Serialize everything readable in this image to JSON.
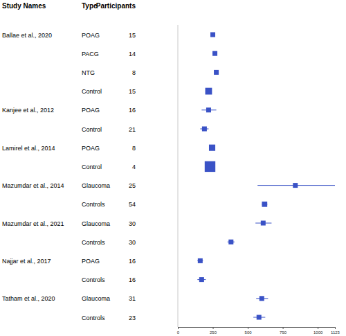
{
  "chart_data": {
    "type": "forest",
    "columns": [
      "Study Names",
      "Type",
      "Participants"
    ],
    "studies": [
      "Ballae et al., 2020",
      null,
      null,
      null,
      "Kanjee et al., 2012",
      null,
      "Lamirel et al., 2014",
      null,
      "Mazumdar et al., 2014",
      null,
      "Mazumdar et al., 2021",
      null,
      "Najjar et al., 2017",
      null,
      "Tatham et al., 2020",
      null
    ],
    "groups": [
      "POAG",
      "PACG",
      "NTG",
      "Control",
      "POAG",
      "Control",
      "POAG",
      "Control",
      "Glaucoma",
      "Controls",
      "Glaucoma",
      "Controls",
      "POAG",
      "Controls",
      "Glaucoma",
      "Controls"
    ],
    "participants": [
      15,
      14,
      8,
      15,
      16,
      21,
      8,
      4,
      25,
      54,
      30,
      30,
      16,
      16,
      31,
      23
    ],
    "values": [
      250,
      265,
      275,
      220,
      220,
      190,
      245,
      230,
      840,
      620,
      610,
      380,
      160,
      170,
      600,
      580
    ],
    "ci_low": [
      238,
      248,
      262,
      210,
      170,
      160,
      235,
      200,
      570,
      600,
      555,
      355,
      140,
      140,
      560,
      540
    ],
    "ci_high": [
      262,
      282,
      290,
      230,
      275,
      220,
      255,
      260,
      1123,
      640,
      670,
      405,
      180,
      200,
      645,
      625
    ],
    "sizes": [
      1,
      1,
      1,
      1.4,
      1,
      1,
      1.3,
      2.2,
      1,
      1.1,
      1,
      1,
      1,
      1,
      1,
      1
    ],
    "color": "#3a52c6",
    "xlim": [
      0,
      1123
    ],
    "xticks": [
      0,
      250,
      500,
      750,
      1000,
      1123
    ]
  }
}
